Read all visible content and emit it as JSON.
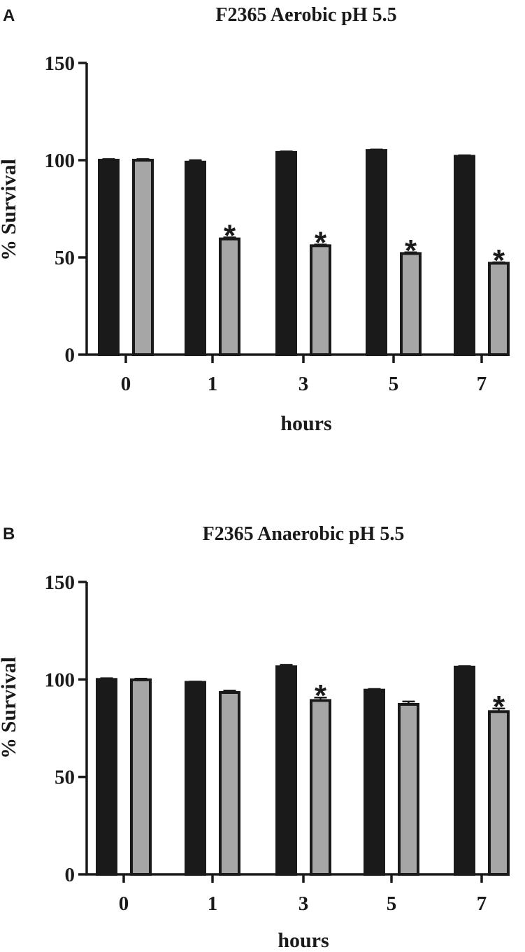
{
  "chart_data": [
    {
      "type": "bar",
      "panel_label": "A",
      "title": "F2365 Aerobic pH 5.5",
      "xlabel": "hours",
      "ylabel": "% Survival",
      "categories": [
        "0",
        "1",
        "3",
        "5",
        "7"
      ],
      "ylim": [
        0,
        150
      ],
      "yticks": [
        "0",
        "50",
        "100",
        "150"
      ],
      "grid": false,
      "series": [
        {
          "values": [
            100,
            99,
            104,
            105,
            102
          ],
          "errors": [
            0.6,
            1.0,
            0.5,
            0.5,
            0.5
          ],
          "color": "#1a1a1a"
        },
        {
          "values": [
            100,
            59.5,
            56,
            52,
            47
          ],
          "errors": [
            0.6,
            0.8,
            0.6,
            0.6,
            0.5
          ],
          "color": "#a6a6a6"
        }
      ],
      "annotations": [
        {
          "category": "1",
          "series": 1,
          "text": "*"
        },
        {
          "category": "3",
          "series": 1,
          "text": "*"
        },
        {
          "category": "5",
          "series": 1,
          "text": "*"
        },
        {
          "category": "7",
          "series": 1,
          "text": "*"
        }
      ]
    },
    {
      "type": "bar",
      "panel_label": "B",
      "title": "F2365 Anaerobic pH 5.5",
      "xlabel": "hours",
      "ylabel": "% Survival",
      "categories": [
        "0",
        "1",
        "3",
        "5",
        "7"
      ],
      "ylim": [
        0,
        150
      ],
      "yticks": [
        "0",
        "50",
        "100",
        "150"
      ],
      "grid": false,
      "series": [
        {
          "values": [
            100,
            98.5,
            106.5,
            94.5,
            106.3
          ],
          "errors": [
            0.6,
            0.4,
            1.0,
            0.6,
            0.5
          ],
          "color": "#1a1a1a"
        },
        {
          "values": [
            99.8,
            93.3,
            89.2,
            87.2,
            83.5
          ],
          "errors": [
            0.6,
            1.0,
            1.5,
            1.5,
            1.6
          ],
          "color": "#a6a6a6"
        }
      ],
      "annotations": [
        {
          "category": "3",
          "series": 1,
          "text": "*"
        },
        {
          "category": "7",
          "series": 1,
          "text": "*"
        }
      ]
    }
  ]
}
